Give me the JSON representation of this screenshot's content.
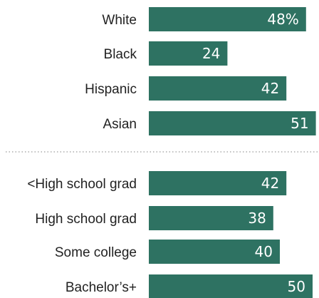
{
  "chart_data": {
    "type": "bar",
    "orientation": "horizontal",
    "groups": [
      {
        "categories": [
          "White",
          "Black",
          "Hispanic",
          "Asian"
        ],
        "values": [
          48,
          24,
          42,
          51
        ],
        "value_labels": [
          "48%",
          "24",
          "42",
          "51"
        ]
      },
      {
        "categories": [
          "<High school grad",
          "High school grad",
          "Some college",
          "Bachelor’s+"
        ],
        "values": [
          42,
          38,
          40,
          50
        ],
        "value_labels": [
          "42",
          "38",
          "40",
          "50"
        ]
      }
    ],
    "bar_color": "#2e7262",
    "label_color": "#ffffff",
    "text_color": "#222222",
    "grid": false
  }
}
